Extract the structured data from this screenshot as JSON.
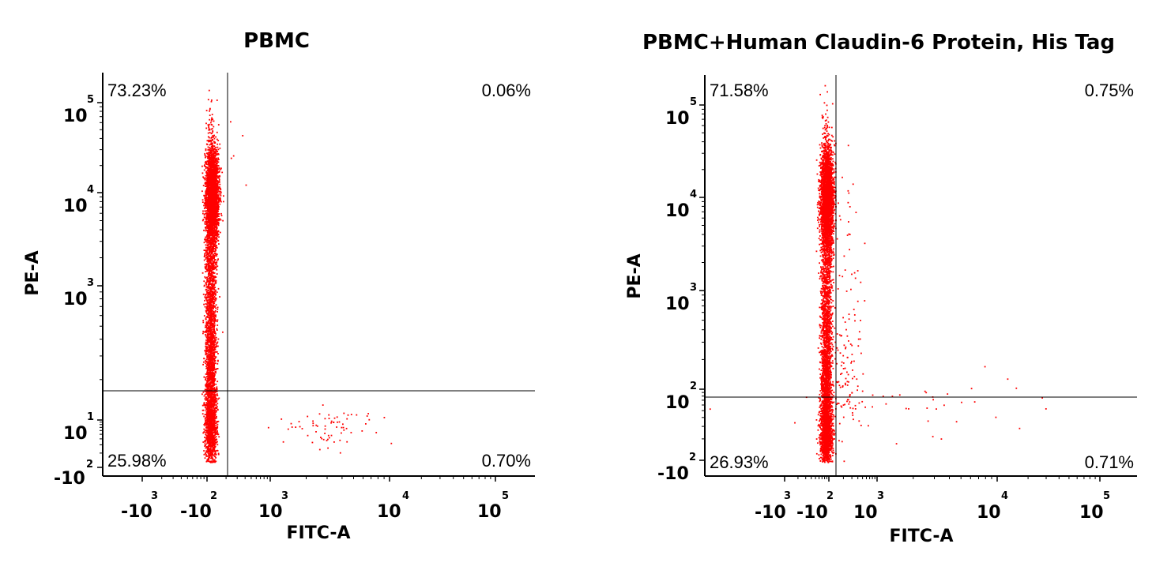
{
  "chart_data": [
    {
      "type": "scatter",
      "title": "PBMC",
      "xlabel": "FITC-A",
      "ylabel": "PE-A",
      "x_ticks": [
        {
          "base": "-10",
          "exp": "3",
          "value": -1000
        },
        {
          "base": "-10",
          "exp": "2",
          "value": -100
        },
        {
          "base": "10",
          "exp": "3",
          "value": 1000
        },
        {
          "base": "10",
          "exp": "4",
          "value": 10000
        },
        {
          "base": "10",
          "exp": "5",
          "value": 100000
        }
      ],
      "y_ticks": [
        {
          "base": "-10",
          "exp": "2",
          "value": -100
        },
        {
          "base": "10",
          "exp": "1",
          "value": 10
        },
        {
          "base": "10",
          "exp": "3",
          "value": 1000
        },
        {
          "base": "10",
          "exp": "4",
          "value": 10000
        },
        {
          "base": "10",
          "exp": "5",
          "value": 100000
        }
      ],
      "quadrant_gate": {
        "x": 150,
        "y": 100
      },
      "quadrants": {
        "upper_left": "73.23%",
        "upper_right": "0.06%",
        "lower_left": "25.98%",
        "lower_right": "0.70%"
      },
      "point_color": "#ff0000"
    },
    {
      "type": "scatter",
      "title": "PBMC+Human Claudin-6 Protein, His Tag",
      "xlabel": "FITC-A",
      "ylabel": "PE-A",
      "x_ticks": [
        {
          "base": "-10",
          "exp": "3",
          "value": -1000
        },
        {
          "base": "-10",
          "exp": "2",
          "value": -100
        },
        {
          "base": "10",
          "exp": "3",
          "value": 1000
        },
        {
          "base": "10",
          "exp": "4",
          "value": 10000
        },
        {
          "base": "10",
          "exp": "5",
          "value": 100000
        }
      ],
      "y_ticks": [
        {
          "base": "-10",
          "exp": "2",
          "value": -100
        },
        {
          "base": "10",
          "exp": "2",
          "value": 100
        },
        {
          "base": "10",
          "exp": "3",
          "value": 1000
        },
        {
          "base": "10",
          "exp": "4",
          "value": 10000
        },
        {
          "base": "10",
          "exp": "5",
          "value": 100000
        }
      ],
      "quadrant_gate": {
        "x": 150,
        "y": 100
      },
      "quadrants": {
        "upper_left": "71.58%",
        "upper_right": "0.75%",
        "lower_left": "26.93%",
        "lower_right": "0.71%"
      },
      "point_color": "#ff0000"
    }
  ]
}
